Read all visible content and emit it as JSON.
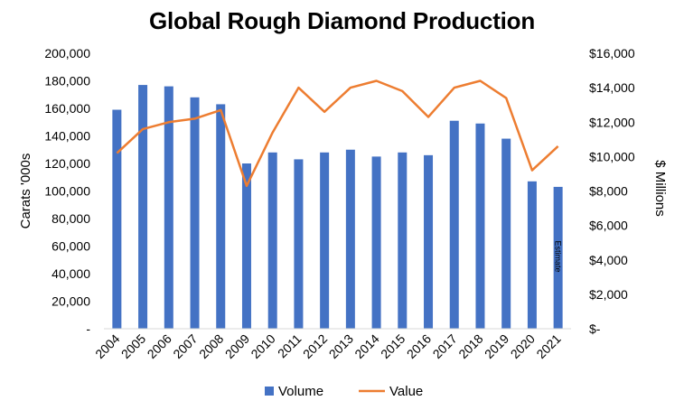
{
  "chart_data": {
    "type": "bar+line",
    "title": "Global Rough Diamond Production",
    "categories": [
      "2004",
      "2005",
      "2006",
      "2007",
      "2008",
      "2009",
      "2010",
      "2011",
      "2012",
      "2013",
      "2014",
      "2015",
      "2016",
      "2017",
      "2018",
      "2019",
      "2020",
      "2021"
    ],
    "series": [
      {
        "name": "Volume",
        "type": "bar",
        "axis": "left",
        "values": [
          159000,
          177000,
          176000,
          168000,
          163000,
          120000,
          128000,
          123000,
          128000,
          130000,
          125000,
          128000,
          126000,
          151000,
          149000,
          138000,
          107000,
          103000
        ]
      },
      {
        "name": "Value",
        "type": "line",
        "axis": "right",
        "values": [
          10200,
          11600,
          12000,
          12200,
          12700,
          8300,
          11400,
          14000,
          12600,
          14000,
          14400,
          13800,
          12300,
          14000,
          14400,
          13400,
          9200,
          10600
        ]
      }
    ],
    "ylabel": "Carats '000s",
    "y2label": "$ Millions",
    "ylim": [
      0,
      200000
    ],
    "y2lim": [
      0,
      16000
    ],
    "yticks": [
      "-",
      "20,000",
      "40,000",
      "60,000",
      "80,000",
      "100,000",
      "120,000",
      "140,000",
      "160,000",
      "180,000",
      "200,000"
    ],
    "y2ticks": [
      "$-",
      "$2,000",
      "$4,000",
      "$6,000",
      "$8,000",
      "$10,000",
      "$12,000",
      "$14,000",
      "$16,000"
    ],
    "annotation": "Estimate",
    "grid": false,
    "legend": "bottom",
    "colors": {
      "bar": "#4472C4",
      "line": "#ED7D31"
    }
  }
}
